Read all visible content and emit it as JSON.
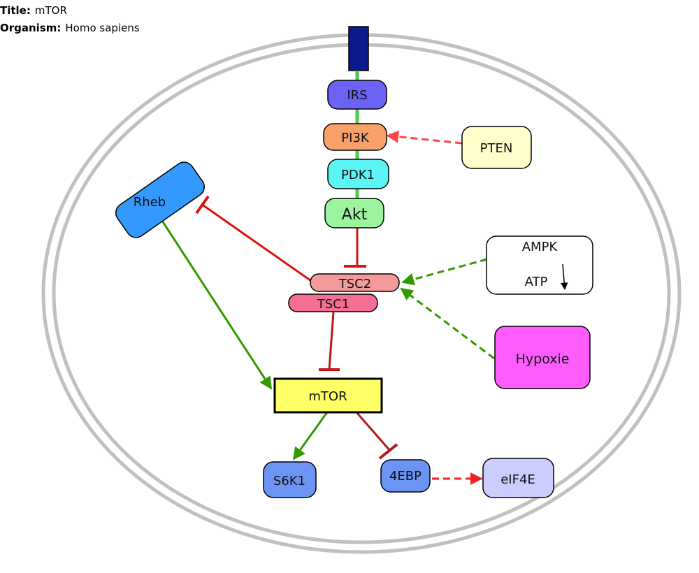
{
  "header": {
    "title_label": "Title:",
    "title_value": "mTOR",
    "organism_label": "Organism:",
    "organism_value": "Homo sapiens"
  },
  "nodes": {
    "irs": "IRS",
    "pi3k": "PI3K",
    "pten": "PTEN",
    "pdk1": "PDK1",
    "akt": "Akt",
    "rheb": "Rheb",
    "ampk": "AMPK",
    "atp": "ATP",
    "tsc2": "TSC2",
    "tsc1": "TSC1",
    "hypoxie": "Hypoxie",
    "mtor": "mTOR",
    "s6k1": "S6K1",
    "ebp4": "4EBP",
    "eif4e": "eIF4E"
  },
  "colors": {
    "receptor": "#0a1a8c",
    "irs": "#6a63f5",
    "pi3k": "#f7a06a",
    "pten": "#ffffcc",
    "pdk1": "#5cf5f5",
    "akt": "#9cf59c",
    "rheb": "#3399ff",
    "tsc2": "#f59a9a",
    "tsc1": "#f56e94",
    "hypoxie": "#ff5cff",
    "mtor": "#ffff66",
    "s6k1": "#6b94f5",
    "ebp4": "#6b94f5",
    "eif4e": "#ccccff",
    "activation": "#339900",
    "inhibition": "#dd1111",
    "membrane": "#c0c0c0"
  }
}
